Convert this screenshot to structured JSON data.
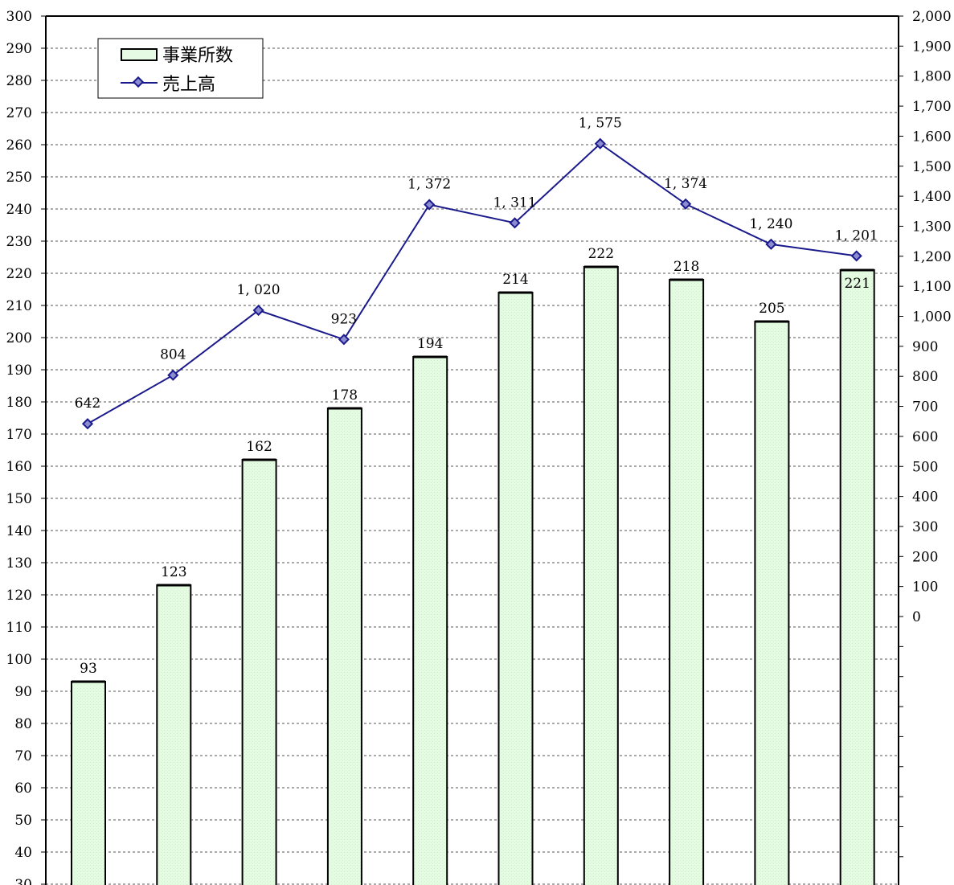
{
  "chart_data": {
    "type": "bar",
    "categories": [
      "",
      "",
      "",
      "",
      "",
      "",
      "",
      "",
      "",
      ""
    ],
    "series": [
      {
        "name": "事業所数",
        "type": "bar",
        "axis": "left",
        "values": [
          93,
          123,
          162,
          178,
          194,
          214,
          222,
          218,
          205,
          221
        ],
        "labels": [
          "93",
          "123",
          "162",
          "178",
          "194",
          "214",
          "222",
          "218",
          "205",
          "221"
        ],
        "color": "#e6fbe4",
        "edge": "#000000"
      },
      {
        "name": "売上高",
        "type": "line",
        "axis": "right",
        "values": [
          642,
          804,
          1020,
          923,
          1372,
          1311,
          1575,
          1374,
          1240,
          1201
        ],
        "labels": [
          "642",
          "804",
          "1, 020",
          "923",
          "1, 372",
          "1, 311",
          "1, 575",
          "1, 374",
          "1, 240",
          "1, 201"
        ],
        "color": "#1a1a8c"
      }
    ],
    "left_axis": {
      "ticks": [
        300,
        290,
        280,
        270,
        260,
        250,
        240,
        230,
        220,
        210,
        200,
        190,
        180,
        170,
        160,
        150,
        140,
        130,
        120,
        110,
        100,
        90,
        80,
        70,
        60,
        50,
        40,
        30
      ]
    },
    "right_axis": {
      "ticks": [
        "2,000",
        "1,900",
        "1,800",
        "1,700",
        "1,600",
        "1,500",
        "1,400",
        "1,300",
        "1,200",
        "1,100",
        "1,000",
        "900",
        "800",
        "700",
        "600",
        "500",
        "400",
        "300",
        "200",
        "100",
        "0"
      ]
    },
    "grid": true,
    "legend": {
      "position": "top-left",
      "items": [
        "事業所数",
        "売上高"
      ]
    }
  }
}
